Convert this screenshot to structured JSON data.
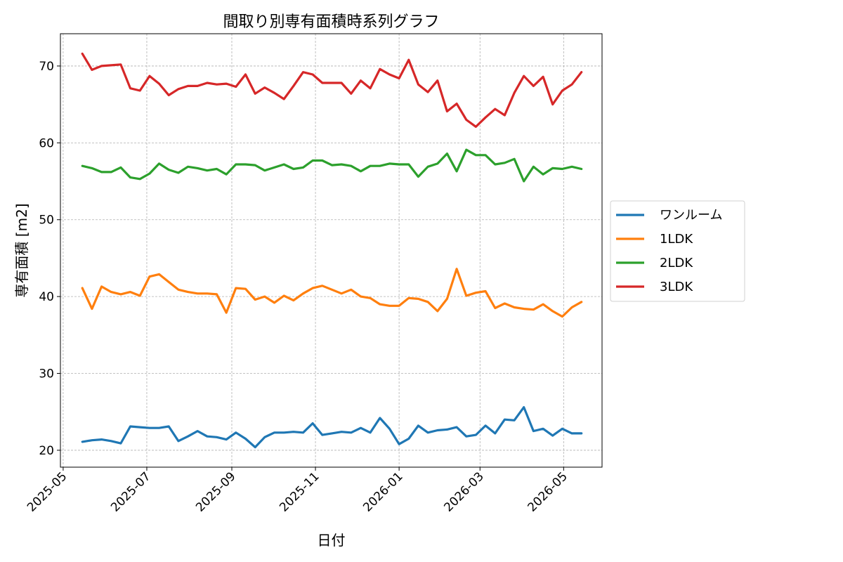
{
  "chart_data": {
    "type": "line",
    "title": "間取り別専有面積時系列グラフ",
    "xlabel": "日付",
    "ylabel": "専有面積 [m2]",
    "x_ticks": [
      "2025-05-01",
      "2025-07-01",
      "2025-09-01",
      "2025-11-01",
      "2026-01-01",
      "2026-03-01",
      "2026-05-01"
    ],
    "x_tick_labels": [
      "2025-05",
      "2025-07",
      "2025-09",
      "2025-11",
      "2026-01",
      "2026-03",
      "2026-05"
    ],
    "xlim": [
      "2025-04-29",
      "2026-05-29"
    ],
    "ylim": [
      17.8,
      74.2
    ],
    "y_ticks": [
      20,
      30,
      40,
      50,
      60,
      70
    ],
    "y_tick_labels": [
      "20",
      "30",
      "40",
      "50",
      "60",
      "70"
    ],
    "grid": true,
    "legend_position": "right-outside",
    "x": [
      "2025-05-15",
      "2025-05-22",
      "2025-05-29",
      "2025-06-05",
      "2025-06-12",
      "2025-06-19",
      "2025-06-26",
      "2025-07-03",
      "2025-07-10",
      "2025-07-17",
      "2025-07-24",
      "2025-07-31",
      "2025-08-07",
      "2025-08-14",
      "2025-08-21",
      "2025-08-28",
      "2025-09-04",
      "2025-09-11",
      "2025-09-18",
      "2025-09-25",
      "2025-10-02",
      "2025-10-09",
      "2025-10-16",
      "2025-10-23",
      "2025-10-30",
      "2025-11-06",
      "2025-11-13",
      "2025-11-20",
      "2025-11-27",
      "2025-12-04",
      "2025-12-11",
      "2025-12-18",
      "2025-12-25",
      "2026-01-01",
      "2026-01-08",
      "2026-01-15",
      "2026-01-22",
      "2026-01-29",
      "2026-02-05",
      "2026-02-12",
      "2026-02-19",
      "2026-02-26",
      "2026-03-05",
      "2026-03-12",
      "2026-03-19",
      "2026-03-26",
      "2026-04-02",
      "2026-04-09",
      "2026-04-16",
      "2026-04-23",
      "2026-04-30",
      "2026-05-07",
      "2026-05-14"
    ],
    "series": [
      {
        "name": "ワンルーム",
        "color": "#1f77b4",
        "values": [
          21.1,
          21.3,
          21.4,
          21.2,
          20.9,
          23.1,
          23.0,
          22.9,
          22.9,
          23.1,
          21.2,
          21.8,
          22.5,
          21.8,
          21.7,
          21.4,
          22.3,
          21.5,
          20.4,
          21.7,
          22.3,
          22.3,
          22.4,
          22.3,
          23.5,
          22.0,
          22.2,
          22.4,
          22.3,
          22.9,
          22.3,
          24.2,
          22.8,
          20.8,
          21.5,
          23.2,
          22.3,
          22.6,
          22.7,
          23.0,
          21.8,
          22.0,
          23.2,
          22.2,
          24.0,
          23.9,
          25.6,
          22.5,
          22.8,
          21.9,
          22.8,
          22.2,
          22.2
        ]
      },
      {
        "name": "1LDK",
        "color": "#ff7f0e",
        "values": [
          41.1,
          38.4,
          41.3,
          40.6,
          40.3,
          40.6,
          40.1,
          42.6,
          42.9,
          41.9,
          40.9,
          40.6,
          40.4,
          40.4,
          40.3,
          37.9,
          41.1,
          41.0,
          39.6,
          40.0,
          39.2,
          40.1,
          39.5,
          40.4,
          41.1,
          41.4,
          40.9,
          40.4,
          40.9,
          40.0,
          39.8,
          39.0,
          38.8,
          38.8,
          39.8,
          39.7,
          39.3,
          38.1,
          39.7,
          43.6,
          40.1,
          40.5,
          40.7,
          38.5,
          39.1,
          38.6,
          38.4,
          38.3,
          39.0,
          38.1,
          37.4,
          38.6,
          39.3
        ]
      },
      {
        "name": "2LDK",
        "color": "#2ca02c",
        "values": [
          57.0,
          56.7,
          56.2,
          56.2,
          56.8,
          55.5,
          55.3,
          56.0,
          57.3,
          56.5,
          56.1,
          56.9,
          56.7,
          56.4,
          56.6,
          55.9,
          57.2,
          57.2,
          57.1,
          56.4,
          56.8,
          57.2,
          56.6,
          56.8,
          57.7,
          57.7,
          57.1,
          57.2,
          57.0,
          56.3,
          57.0,
          57.0,
          57.3,
          57.2,
          57.2,
          55.6,
          56.9,
          57.3,
          58.6,
          56.3,
          59.1,
          58.4,
          58.4,
          57.2,
          57.4,
          57.9,
          55.0,
          56.9,
          55.9,
          56.7,
          56.6,
          56.9,
          56.6
        ]
      },
      {
        "name": "3LDK",
        "color": "#d62728",
        "values": [
          71.6,
          69.5,
          70.0,
          70.1,
          70.2,
          67.1,
          66.8,
          68.7,
          67.7,
          66.2,
          67.0,
          67.4,
          67.4,
          67.8,
          67.6,
          67.7,
          67.3,
          68.9,
          66.4,
          67.2,
          66.5,
          65.7,
          67.4,
          69.2,
          68.9,
          67.8,
          67.8,
          67.8,
          66.4,
          68.1,
          67.1,
          69.6,
          68.9,
          68.4,
          70.8,
          67.6,
          66.6,
          68.1,
          64.1,
          65.1,
          63.0,
          62.1,
          63.3,
          64.4,
          63.6,
          66.5,
          68.7,
          67.4,
          68.6,
          65.0,
          66.8,
          67.6,
          69.2
        ]
      }
    ]
  }
}
